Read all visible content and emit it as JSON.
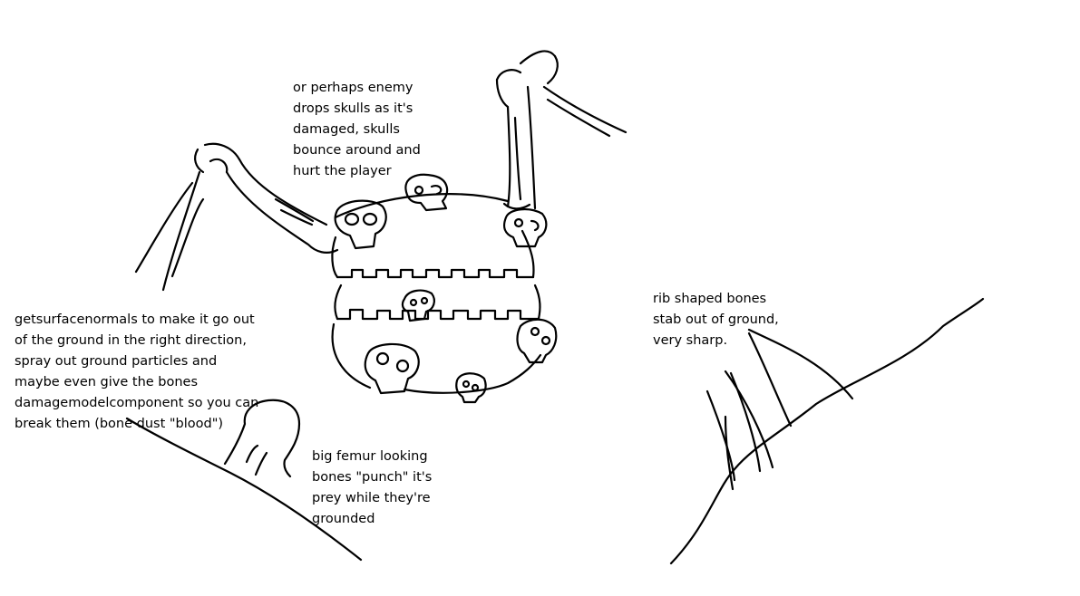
{
  "notes": {
    "skulls": [
      "or perhaps enemy",
      "drops skulls as it's",
      "damaged, skulls",
      "bounce around and",
      "hurt the player"
    ],
    "surface": [
      "getsurfacenormals to make it go out",
      "of the ground in the right direction,",
      "spray out ground particles and",
      "maybe even give the bones",
      "damagemodelcomponent so you can",
      "break them (bone dust \"blood\")"
    ],
    "femur": [
      "big femur looking",
      "bones \"punch\" it's",
      "prey while they're",
      "grounded"
    ],
    "rib": [
      "rib shaped bones",
      "stab out of ground,",
      "very sharp."
    ]
  },
  "style": {
    "ink": "#000000",
    "paper": "#ffffff"
  }
}
